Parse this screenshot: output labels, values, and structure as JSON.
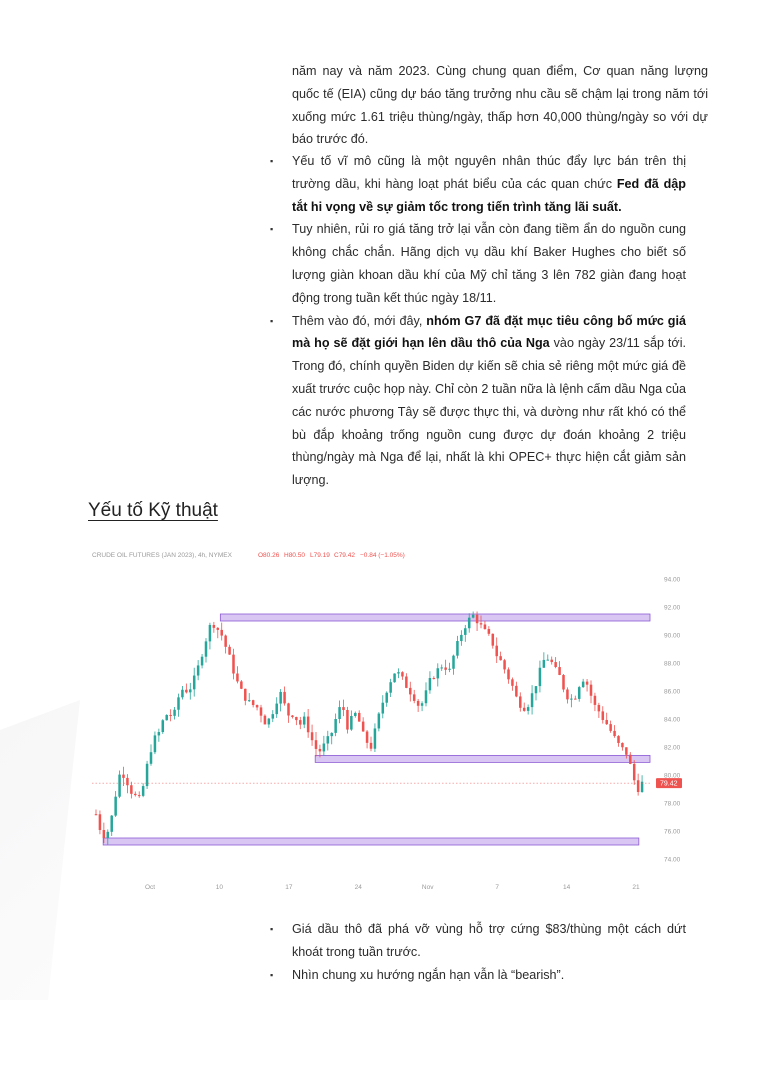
{
  "intro_text": "năm nay và năm 2023. Cùng chung quan điểm, Cơ quan năng lượng quốc tế (EIA) cũng dự báo tăng trưởng nhu cầu sẽ chậm lại trong năm tới xuống mức 1.61 triệu thùng/ngày, thấp hơn 40,000 thùng/ngày so với dự báo trước đó.",
  "bullets": [
    {
      "pre": "Yếu tố vĩ mô cũng là một nguyên nhân thúc đẩy lực bán trên thị trường dầu, khi hàng loạt phát biểu của các quan chức ",
      "bold": "Fed đã dập tắt hi vọng về sự giảm tốc trong tiến trình tăng lãi suất.",
      "post": ""
    },
    {
      "pre": "Tuy nhiên, rủi ro giá tăng trở lại vẫn còn đang tiềm ẩn do nguồn cung không chắc chắn. Hãng dịch vụ dầu khí Baker Hughes cho biết số lượng giàn khoan dầu khí của Mỹ chỉ tăng 3 lên 782 giàn đang hoạt động trong tuần kết thúc ngày 18/11.",
      "bold": "",
      "post": ""
    },
    {
      "pre": "Thêm vào đó, mới đây, ",
      "bold": "nhóm G7 đã đặt mục tiêu công bố mức giá mà họ sẽ đặt giới hạn lên dầu thô của Nga",
      "post": " vào ngày 23/11 sắp tới. Trong đó, chính quyền Biden dự kiến sẽ chia sẻ riêng một mức giá đề xuất trước cuộc họp này. Chỉ còn 2 tuần nữa là lệnh cấm dầu Nga của các nước phương Tây sẽ được thực thi, và dường như rất khó có thể bù đắp khoảng trống nguồn cung được dự đoán khoảng 2 triệu thùng/ngày mà Nga để lại, nhất là khi OPEC+ thực hiện cắt giảm sản lượng."
    }
  ],
  "section_heading": "Yếu tố Kỹ thuật",
  "chart_data": {
    "type": "candlestick",
    "title": "CRUDE OIL FUTURES (JAN 2023), 4h, NYMEX",
    "ohlc_label": {
      "o": "O80.26",
      "h": "H80.50",
      "l": "L79.19",
      "c": "C79.42",
      "chg": "−0.84 (−1.05%)"
    },
    "current_price": "79.42",
    "y_ticks": [
      "94.00",
      "92.00",
      "90.00",
      "88.00",
      "86.00",
      "84.00",
      "82.00",
      "80.00",
      "78.00",
      "76.00",
      "74.00"
    ],
    "ylim": [
      73.0,
      95.0
    ],
    "x_ticks": [
      "Oct",
      "10",
      "17",
      "24",
      "Nov",
      "7",
      "14",
      "21"
    ],
    "close_path": [
      77.2,
      76.0,
      75.6,
      76.5,
      78.5,
      80.2,
      80.0,
      79.0,
      78.5,
      78.2,
      79.5,
      81.5,
      82.5,
      83.0,
      84.0,
      84.5,
      84.0,
      85.5,
      86.2,
      86.0,
      86.5,
      87.5,
      88.8,
      90.0,
      91.0,
      90.5,
      90.0,
      89.0,
      88.0,
      86.8,
      86.0,
      85.5,
      85.0,
      85.0,
      84.5,
      83.8,
      84.0,
      85.0,
      86.0,
      85.0,
      84.2,
      84.5,
      83.5,
      84.0,
      83.2,
      82.2,
      81.6,
      82.0,
      82.5,
      83.2,
      84.5,
      85.0,
      83.5,
      84.0,
      84.5,
      83.0,
      82.4,
      82.0,
      83.5,
      84.8,
      86.0,
      86.8,
      87.5,
      87.0,
      86.5,
      86.0,
      85.5,
      84.8,
      85.5,
      86.6,
      87.2,
      87.6,
      88.0,
      87.2,
      88.5,
      89.5,
      90.5,
      91.0,
      91.4,
      91.0,
      90.4,
      90.0,
      89.5,
      88.5,
      88.0,
      87.2,
      86.5,
      85.5,
      85.0,
      84.8,
      85.5,
      86.5,
      87.5,
      88.5,
      88.2,
      87.5,
      87.0,
      86.0,
      85.4,
      85.5,
      86.5,
      87.0,
      86.2,
      85.0,
      84.6,
      84.0,
      83.5,
      82.8,
      82.2,
      81.8,
      81.5,
      80.0,
      79.0,
      79.4
    ],
    "zones": [
      {
        "label": "resistance",
        "low": 91.0,
        "high": 91.5,
        "start": 0.23,
        "end": 1.0
      },
      {
        "label": "support",
        "low": 80.9,
        "high": 81.4,
        "start": 0.4,
        "end": 1.0
      },
      {
        "label": "support",
        "low": 75.0,
        "high": 75.5,
        "start": 0.02,
        "end": 0.98
      }
    ]
  },
  "conclusions": [
    "Giá dầu thô đã phá vỡ vùng hỗ trợ cứng $83/thùng một cách dứt khoát trong tuần trước.",
    "Nhìn chung xu hướng ngắn hạn vẫn là “bearish”."
  ],
  "colors": {
    "up": "#26a69a",
    "down": "#ef5350",
    "zone_fill": "#d9c6f2",
    "zone_stroke": "#8d5bd6",
    "price_tag": "#ef5350"
  }
}
